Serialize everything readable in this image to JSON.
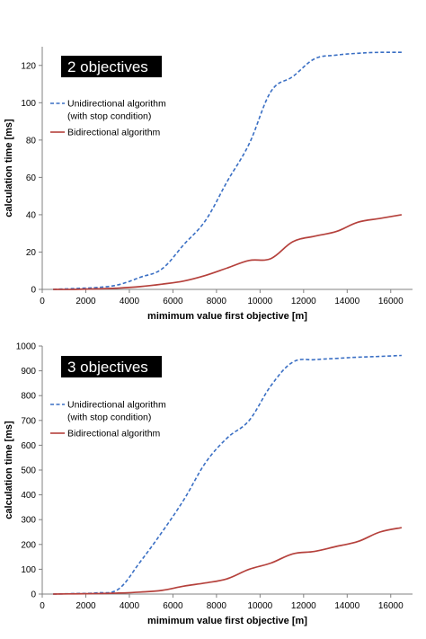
{
  "chart_data": [
    {
      "type": "line",
      "title": "2 objectives",
      "xlabel": "mimimum value first objective [m]",
      "ylabel": "calculation time [ms]",
      "xlim": [
        0,
        17000
      ],
      "ylim": [
        0,
        130
      ],
      "xticks": [
        0,
        2000,
        4000,
        6000,
        8000,
        10000,
        12000,
        14000,
        16000
      ],
      "yticks": [
        0,
        20,
        40,
        60,
        80,
        100,
        120
      ],
      "legend_position": "top-left",
      "series": [
        {
          "name": "Unidirectional algorithm (with stop condition)",
          "legend_lines": [
            "Unidirectional algorithm",
            "(with stop condition)"
          ],
          "color": "#3a6fc4",
          "style": "dashed",
          "x": [
            500,
            1500,
            2500,
            3500,
            4500,
            5500,
            6500,
            7500,
            8500,
            9500,
            10500,
            11500,
            12500,
            13500,
            14500,
            15500,
            16500
          ],
          "y": [
            0,
            0.5,
            1,
            2.5,
            6.5,
            11,
            24,
            37,
            58,
            78,
            106,
            114,
            123.5,
            125.5,
            126.5,
            127,
            127
          ]
        },
        {
          "name": "Bidirectional algorithm",
          "legend_lines": [
            "Bidirectional algorithm"
          ],
          "color": "#b5413c",
          "style": "solid",
          "x": [
            500,
            1500,
            2500,
            3500,
            4500,
            5500,
            6500,
            7500,
            8500,
            9500,
            10500,
            11500,
            12500,
            13500,
            14500,
            15500,
            16500
          ],
          "y": [
            0,
            0,
            0.3,
            0.7,
            1.5,
            2.8,
            4.5,
            7.5,
            11.5,
            15.5,
            16.5,
            25.5,
            28.5,
            31,
            36,
            38,
            40
          ]
        }
      ]
    },
    {
      "type": "line",
      "title": "3 objectives",
      "xlabel": "mimimum value first objective [m]",
      "ylabel": "calculation time [ms]",
      "xlim": [
        0,
        17000
      ],
      "ylim": [
        0,
        1000
      ],
      "xticks": [
        0,
        2000,
        4000,
        6000,
        8000,
        10000,
        12000,
        14000,
        16000
      ],
      "yticks": [
        0,
        100,
        200,
        300,
        400,
        500,
        600,
        700,
        800,
        900,
        1000
      ],
      "legend_position": "top-left",
      "series": [
        {
          "name": "Unidirectional algorithm (with stop condition)",
          "legend_lines": [
            "Unidirectional algorithm",
            "(with stop condition)"
          ],
          "color": "#3a6fc4",
          "style": "dashed",
          "x": [
            500,
            1500,
            2500,
            3500,
            4500,
            5500,
            6500,
            7500,
            8500,
            9500,
            10500,
            11500,
            12500,
            13500,
            14500,
            15500,
            16500
          ],
          "y": [
            0,
            2,
            5,
            20,
            130,
            250,
            380,
            530,
            630,
            700,
            840,
            935,
            945,
            950,
            955,
            958,
            962
          ]
        },
        {
          "name": "Bidirectional algorithm",
          "legend_lines": [
            "Bidirectional algorithm"
          ],
          "color": "#b5413c",
          "style": "solid",
          "x": [
            500,
            1500,
            2500,
            3500,
            4500,
            5500,
            6500,
            7500,
            8500,
            9500,
            10500,
            11500,
            12500,
            13500,
            14500,
            15500,
            16500
          ],
          "y": [
            0,
            1,
            2,
            4,
            8,
            15,
            32,
            45,
            62,
            100,
            125,
            162,
            172,
            192,
            212,
            250,
            268
          ]
        }
      ]
    }
  ]
}
